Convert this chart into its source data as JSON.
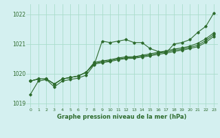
{
  "title": "Graphe pression niveau de la mer (hPa)",
  "bg_color": "#d4f0f0",
  "grid_color": "#aaddcc",
  "line_color": "#2d6b2d",
  "xlim": [
    -0.5,
    23.5
  ],
  "ylim": [
    1018.85,
    1022.35
  ],
  "yticks": [
    1019,
    1020,
    1021,
    1022
  ],
  "xticks": [
    0,
    1,
    2,
    3,
    4,
    5,
    6,
    7,
    8,
    9,
    10,
    11,
    12,
    13,
    14,
    15,
    16,
    17,
    18,
    19,
    20,
    21,
    22,
    23
  ],
  "series": [
    {
      "x": [
        0,
        1,
        2,
        3,
        4,
        5,
        6,
        7,
        8,
        9,
        10,
        11,
        12,
        13,
        14,
        15,
        16,
        17,
        18,
        19,
        20,
        21,
        22,
        23
      ],
      "y": [
        1019.3,
        1019.75,
        1019.8,
        1019.55,
        1019.75,
        1019.8,
        1019.85,
        1019.95,
        1020.3,
        1021.1,
        1021.05,
        1021.1,
        1021.15,
        1021.05,
        1021.05,
        1020.85,
        1020.75,
        1020.7,
        1021.0,
        1021.05,
        1021.15,
        1021.4,
        1021.6,
        1022.05
      ]
    },
    {
      "x": [
        0,
        1,
        2,
        3,
        4,
        5,
        6,
        7,
        8,
        9,
        10,
        11,
        12,
        13,
        14,
        15,
        16,
        17,
        18,
        19,
        20,
        21,
        22,
        23
      ],
      "y": [
        1019.75,
        1019.82,
        1019.82,
        1019.65,
        1019.82,
        1019.87,
        1019.92,
        1020.05,
        1020.38,
        1020.43,
        1020.47,
        1020.53,
        1020.57,
        1020.57,
        1020.62,
        1020.67,
        1020.72,
        1020.77,
        1020.83,
        1020.87,
        1020.93,
        1021.03,
        1021.18,
        1021.38
      ]
    },
    {
      "x": [
        0,
        1,
        2,
        3,
        4,
        5,
        6,
        7,
        8,
        9,
        10,
        11,
        12,
        13,
        14,
        15,
        16,
        17,
        18,
        19,
        20,
        21,
        22,
        23
      ],
      "y": [
        1019.75,
        1019.82,
        1019.82,
        1019.65,
        1019.82,
        1019.87,
        1019.92,
        1020.05,
        1020.35,
        1020.4,
        1020.44,
        1020.5,
        1020.54,
        1020.55,
        1020.59,
        1020.63,
        1020.69,
        1020.73,
        1020.79,
        1020.83,
        1020.89,
        1020.96,
        1021.12,
        1021.32
      ]
    },
    {
      "x": [
        0,
        1,
        2,
        3,
        4,
        5,
        6,
        7,
        8,
        9,
        10,
        11,
        12,
        13,
        14,
        15,
        16,
        17,
        18,
        19,
        20,
        21,
        22,
        23
      ],
      "y": [
        1019.75,
        1019.82,
        1019.82,
        1019.65,
        1019.82,
        1019.87,
        1019.92,
        1020.05,
        1020.32,
        1020.37,
        1020.41,
        1020.47,
        1020.51,
        1020.52,
        1020.56,
        1020.6,
        1020.65,
        1020.69,
        1020.75,
        1020.79,
        1020.85,
        1020.91,
        1021.06,
        1021.26
      ]
    }
  ]
}
